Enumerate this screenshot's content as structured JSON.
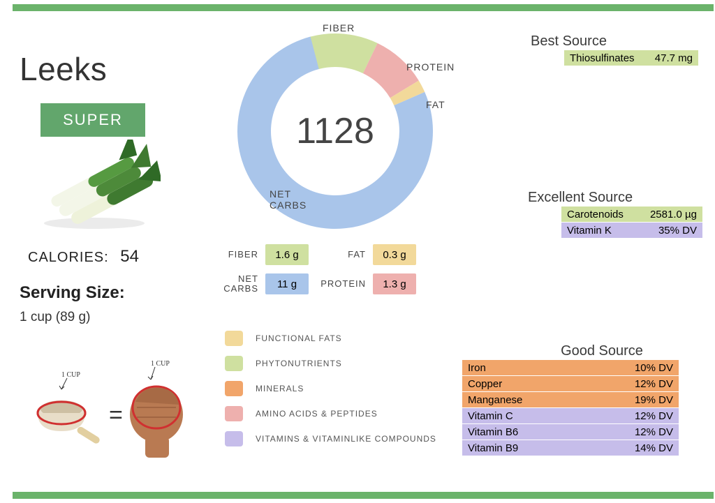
{
  "title": "Leeks",
  "badge": "SUPER",
  "calories": {
    "label": "CALORIES:",
    "value": "54"
  },
  "serving": {
    "label": "Serving Size:",
    "value": "1 cup (89 g)"
  },
  "illustration": {
    "cup_label": "1 CUP",
    "fist_label": "1 CUP"
  },
  "donut": {
    "center_value": "1128",
    "segments": [
      {
        "key": "fiber",
        "label": "FIBER",
        "color": "#cfe0a0",
        "value": 1.6,
        "fraction": 0.113
      },
      {
        "key": "protein",
        "label": "PROTEIN",
        "color": "#eeb0ae",
        "value": 1.3,
        "fraction": 0.092
      },
      {
        "key": "fat",
        "label": "FAT",
        "color": "#f2d99a",
        "value": 0.3,
        "fraction": 0.021
      },
      {
        "key": "net_carbs",
        "label": "NET CARBS",
        "color": "#a9c5ea",
        "value": 11,
        "fraction": 0.775
      }
    ],
    "inner_r": 92,
    "outer_r": 140,
    "start_angle": -105
  },
  "macros": [
    {
      "label": "FIBER",
      "value": "1.6 g",
      "color": "#cfe0a0"
    },
    {
      "label": "FAT",
      "value": "0.3 g",
      "color": "#f2d99a"
    },
    {
      "label": "NET\nCARBS",
      "value": "11 g",
      "color": "#a9c5ea"
    },
    {
      "label": "PROTEIN",
      "value": "1.3 g",
      "color": "#eeb0ae"
    }
  ],
  "categories": [
    {
      "label": "FUNCTIONAL  FATS",
      "color": "#f2d99a"
    },
    {
      "label": "PHYTONUTRIENTS",
      "color": "#cfe0a0"
    },
    {
      "label": "MINERALS",
      "color": "#f1a56a"
    },
    {
      "label": "AMINO ACIDS & PEPTIDES",
      "color": "#eeb0ae"
    },
    {
      "label": "VITAMINS & VITAMINLIKE COMPOUNDS",
      "color": "#c6bdea"
    }
  ],
  "sources": {
    "best": {
      "heading": "Best Source",
      "rows": [
        {
          "name": "Thiosulfinates",
          "value": "47.7 mg",
          "color": "#cfe0a0"
        }
      ]
    },
    "excellent": {
      "heading": "Excellent Source",
      "rows": [
        {
          "name": "Carotenoids",
          "value": "2581.0 µg",
          "color": "#cfe0a0"
        },
        {
          "name": "Vitamin K",
          "value": "35% DV",
          "color": "#c6bdea"
        }
      ]
    },
    "good": {
      "heading": "Good Source",
      "rows": [
        {
          "name": "Iron",
          "value": "10% DV",
          "color": "#f1a56a"
        },
        {
          "name": "Copper",
          "value": "12% DV",
          "color": "#f1a56a"
        },
        {
          "name": "Manganese",
          "value": "19% DV",
          "color": "#f1a56a"
        },
        {
          "name": "Vitamin C",
          "value": "12% DV",
          "color": "#c6bdea"
        },
        {
          "name": "Vitamin B6",
          "value": "12% DV",
          "color": "#c6bdea"
        },
        {
          "name": "Vitamin B9",
          "value": "14% DV",
          "color": "#c6bdea"
        }
      ]
    }
  },
  "colors": {
    "green_bar": "#6bb36b",
    "badge_bg": "#62a66c",
    "text": "#333"
  }
}
